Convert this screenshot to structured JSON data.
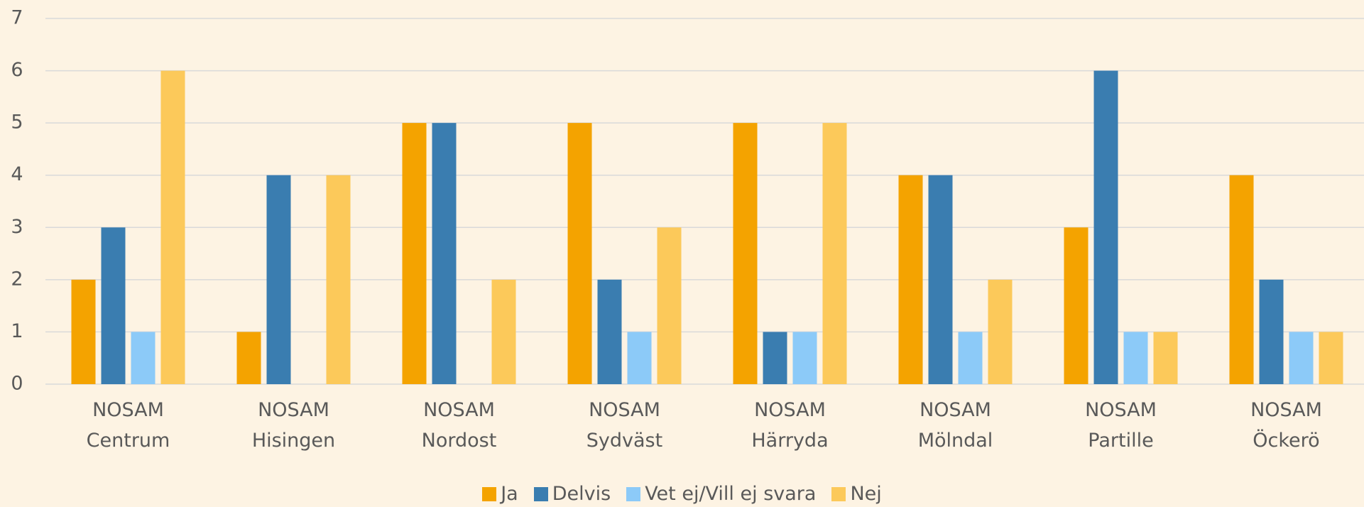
{
  "chart_data": {
    "type": "bar",
    "categories": [
      "NOSAM Centrum",
      "NOSAM Hisingen",
      "NOSAM Nordost",
      "NOSAM Sydväst",
      "NOSAM Härryda",
      "NOSAM Mölndal",
      "NOSAM Partille",
      "NOSAM Öckerö"
    ],
    "series": [
      {
        "name": "Ja",
        "color": "#f4a300",
        "values": [
          2,
          1,
          5,
          5,
          5,
          4,
          3,
          4
        ]
      },
      {
        "name": "Delvis",
        "color": "#3a7db0",
        "values": [
          3,
          4,
          5,
          2,
          1,
          4,
          6,
          2
        ]
      },
      {
        "name": "Vet ej/Vill ej svara",
        "color": "#8ccaf8",
        "values": [
          1,
          0,
          0,
          1,
          1,
          1,
          1,
          1
        ]
      },
      {
        "name": "Nej",
        "color": "#fcc95a",
        "values": [
          6,
          4,
          2,
          3,
          5,
          2,
          1,
          1
        ]
      }
    ],
    "ylim": [
      0,
      7
    ],
    "yticks": [
      0,
      1,
      2,
      3,
      4,
      5,
      6,
      7
    ],
    "grid": true,
    "legend": "bottom"
  }
}
